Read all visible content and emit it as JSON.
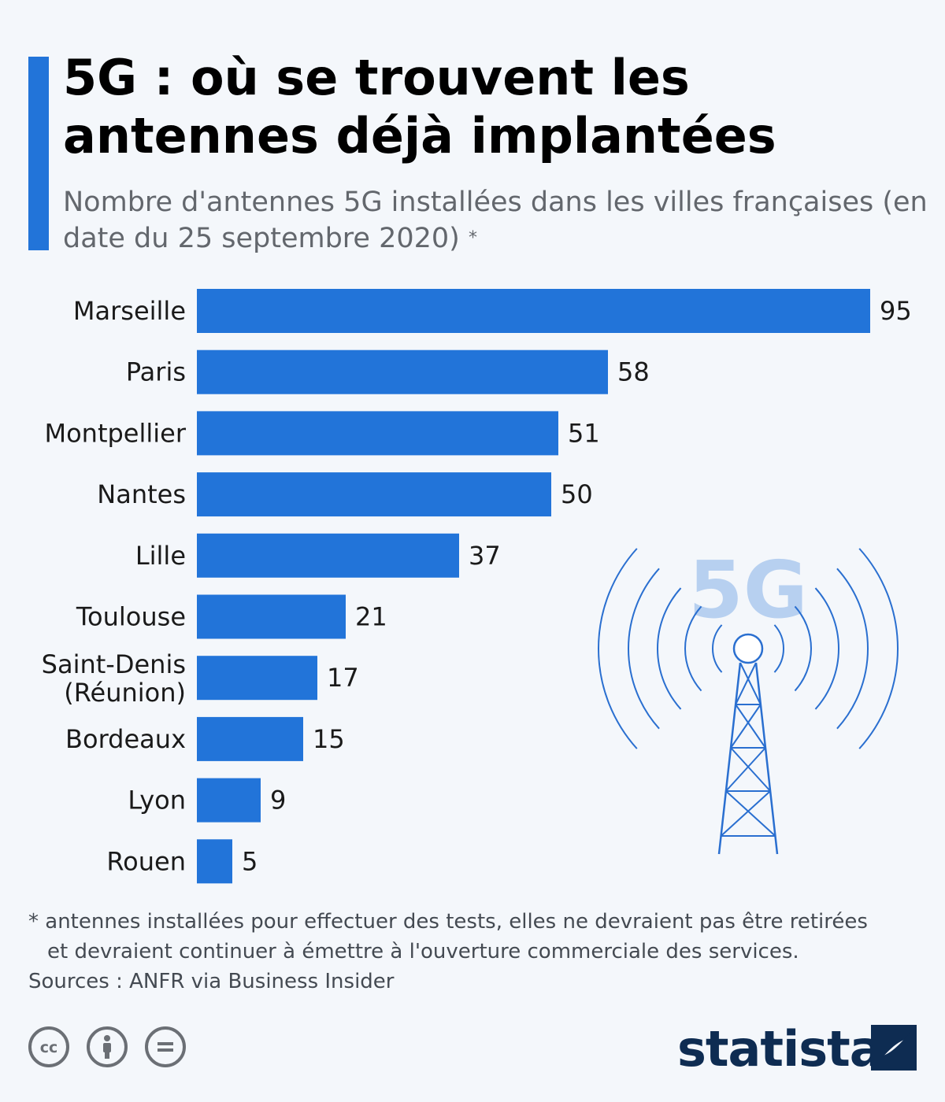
{
  "header": {
    "title": "5G : où se trouvent les antennes déjà implantées",
    "subtitle": "Nombre d'antennes 5G installées dans les villes françaises (en date du 25 septembre 2020)",
    "subtitle_star": "*"
  },
  "illustration": {
    "badge_text": "5G",
    "icon": "antenna-tower-icon"
  },
  "colors": {
    "bar": "#2274d9",
    "accent": "#2274d9",
    "illustration": "#2a6fd0",
    "badge": "#b7d0f0",
    "logo": "#0e2c52"
  },
  "chart_data": {
    "type": "bar",
    "orientation": "horizontal",
    "categories": [
      "Marseille",
      "Paris",
      "Montpellier",
      "Nantes",
      "Lille",
      "Toulouse",
      "Saint-Denis (Réunion)",
      "Bordeaux",
      "Lyon",
      "Rouen"
    ],
    "values": [
      95,
      58,
      51,
      50,
      37,
      21,
      17,
      15,
      9,
      5
    ],
    "data_labels": true,
    "grid": false
  },
  "footer": {
    "footnote_line1": "* antennes installées pour effectuer des tests, elles ne devraient pas être retirées",
    "footnote_line2": "et devraient continuer à émettre à l'ouverture commerciale des services.",
    "source": "Sources : ANFR via Business Insider",
    "logo": "statista",
    "license_icons": [
      "cc-icon",
      "by-attribution-icon",
      "nd-noderivs-icon"
    ]
  }
}
